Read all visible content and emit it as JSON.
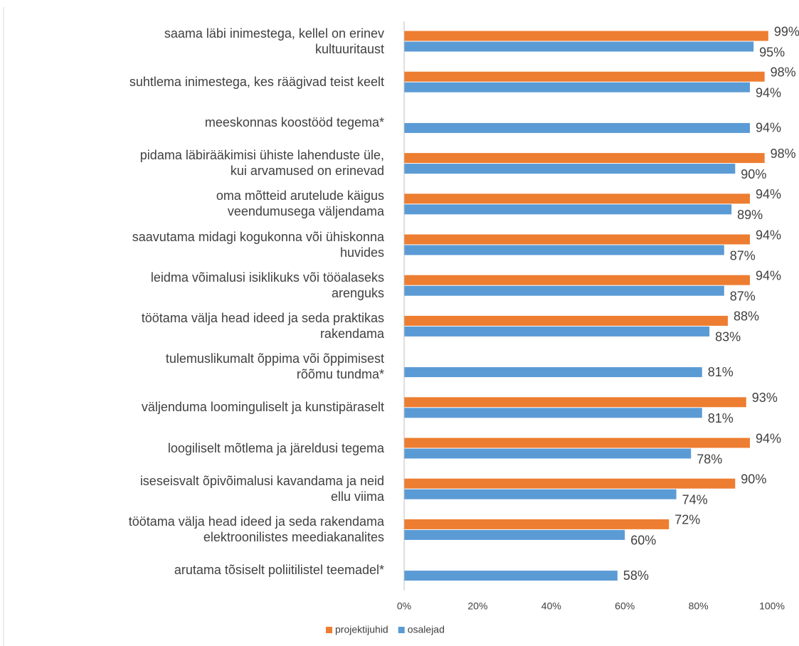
{
  "chart_data": {
    "type": "hbar",
    "categories": [
      "saama läbi inimestega, kellel on erinev\nkultuuritaust",
      "suhtlema inimestega, kes räägivad teist keelt",
      "meeskonnas koostööd tegema*",
      "pidama läbirääkimisi ühiste lahenduste üle,\nkui arvamused on erinevad",
      "oma mõtteid arutelude käigus\nveendumusega väljendama",
      "saavutama midagi kogukonna või ühiskonna\nhuvides",
      "leidma võimalusi isiklikuks või tööalaseks\narenguks",
      "töötama välja head ideed ja seda praktikas\nrakendama",
      "tulemuslikumalt õppima või õppimisest\nrõõmu tundma*",
      "väljenduma loominguliselt ja kunstipäraselt",
      "loogiliselt mõtlema ja järeldusi tegema",
      "iseseisvalt õpivõimalusi kavandama ja neid\nellu viima",
      "töötama välja head ideed ja seda rakendama\nelektroonilistes meediakanalites",
      "arutama tõsiselt poliitilistel teemadel*"
    ],
    "series": [
      {
        "name": "projektijuhid",
        "color": "#ED7D31",
        "values": [
          99,
          98,
          null,
          98,
          94,
          94,
          94,
          88,
          null,
          93,
          94,
          90,
          72,
          null
        ],
        "value_labels": [
          "99%",
          "98%",
          null,
          "98%",
          "94%",
          "94%",
          "94%",
          "88%",
          null,
          "93%",
          "94%",
          "90%",
          "72%",
          null
        ]
      },
      {
        "name": "osalejad",
        "color": "#5B9BD5",
        "values": [
          95,
          94,
          94,
          90,
          89,
          87,
          87,
          83,
          81,
          81,
          78,
          74,
          60,
          58
        ],
        "value_labels": [
          "95%",
          "94%",
          "94%",
          "90%",
          "89%",
          "87%",
          "87%",
          "83%",
          "81%",
          "81%",
          "78%",
          "74%",
          "60%",
          "58%"
        ]
      }
    ],
    "xlim": [
      0,
      100
    ],
    "xticks": [
      {
        "value": 0,
        "label": "0%"
      },
      {
        "value": 20,
        "label": "20%"
      },
      {
        "value": 40,
        "label": "40%"
      },
      {
        "value": 60,
        "label": "60%"
      },
      {
        "value": 80,
        "label": "80%"
      },
      {
        "value": 100,
        "label": "100%"
      }
    ],
    "grid": false,
    "legend": "bottom"
  }
}
